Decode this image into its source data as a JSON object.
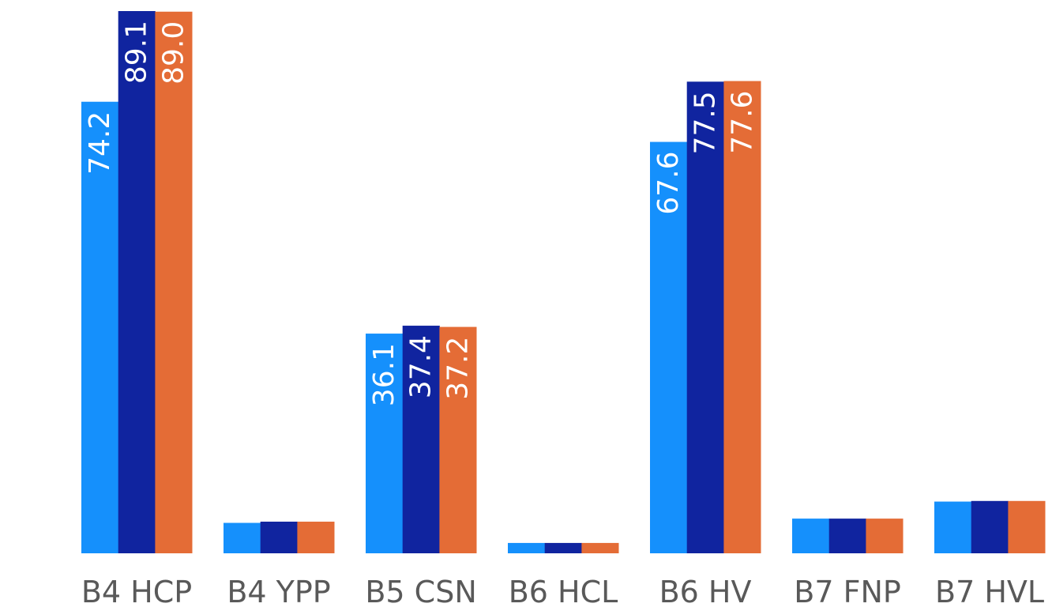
{
  "chart_data": {
    "type": "bar",
    "title": "",
    "xlabel": "",
    "ylabel": "",
    "categories": [
      "B4 HCP",
      "B4 YPP",
      "B5 CSN",
      "B6 HCL",
      "B6 HV",
      "B7 FNP",
      "B7 HVL"
    ],
    "series": [
      {
        "color": "#1590FC",
        "values": [
          74.2,
          5.0,
          36.1,
          1.7,
          67.6,
          5.7,
          8.5
        ],
        "labels": [
          "74.2",
          "",
          "36.1",
          "",
          "67.6",
          "",
          ""
        ]
      },
      {
        "color": "#10249F",
        "values": [
          89.1,
          5.2,
          37.4,
          1.7,
          77.5,
          5.7,
          8.6
        ],
        "labels": [
          "89.1",
          "",
          "37.4",
          "",
          "77.5",
          "",
          ""
        ]
      },
      {
        "color": "#E46C36",
        "values": [
          89.0,
          5.2,
          37.2,
          1.7,
          77.6,
          5.7,
          8.6
        ],
        "labels": [
          "89.0",
          "",
          "37.2",
          "",
          "77.6",
          "",
          ""
        ]
      }
    ],
    "ylim": [
      0,
      89.1
    ],
    "grid": false,
    "legend": "none"
  }
}
